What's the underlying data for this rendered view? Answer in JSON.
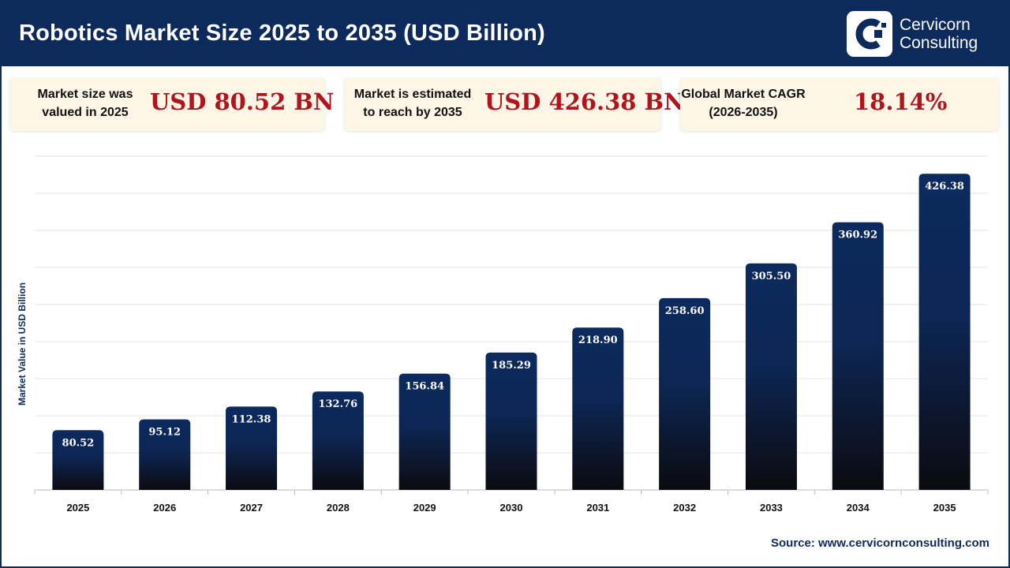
{
  "header": {
    "title": "Robotics Market Size 2025 to 2035 (USD Billion)",
    "logo_line1": "Cervicorn",
    "logo_line2": "Consulting"
  },
  "stats": [
    {
      "label_line1": "Market size was",
      "label_line2": "valued in 2025",
      "value": "USD 80.52 BN"
    },
    {
      "label_line1": "Market is estimated",
      "label_line2": "to reach by 2035",
      "value": "USD 426.38 BN"
    },
    {
      "label_line1": "Global Market CAGR",
      "label_line2": "(2026-2035)",
      "value": "18.14%"
    }
  ],
  "colors": {
    "brand": "#0d2a5c",
    "accent": "#b1141d",
    "bar_top": "#0c2a5e",
    "bar_bottom": "#0b0b10",
    "card_bg": "#fdf6e6"
  },
  "chart_data": {
    "type": "bar",
    "title": "Robotics Market Size 2025 to 2035 (USD Billion)",
    "xlabel": "",
    "ylabel": "Market Value in USD Billion",
    "categories": [
      "2025",
      "2026",
      "2027",
      "2028",
      "2029",
      "2030",
      "2031",
      "2032",
      "2033",
      "2034",
      "2035"
    ],
    "values": [
      80.52,
      95.12,
      112.38,
      132.76,
      156.84,
      185.29,
      218.9,
      258.6,
      305.5,
      360.92,
      426.38
    ],
    "value_labels": [
      "80.52",
      "95.12",
      "112.38",
      "132.76",
      "156.84",
      "185.29",
      "218.90",
      "258.60",
      "305.50",
      "360.92",
      "426.38"
    ],
    "ylim": [
      0,
      450
    ],
    "grid": true,
    "legend": "none"
  },
  "source": "Source: www.cervicornconsulting.com"
}
